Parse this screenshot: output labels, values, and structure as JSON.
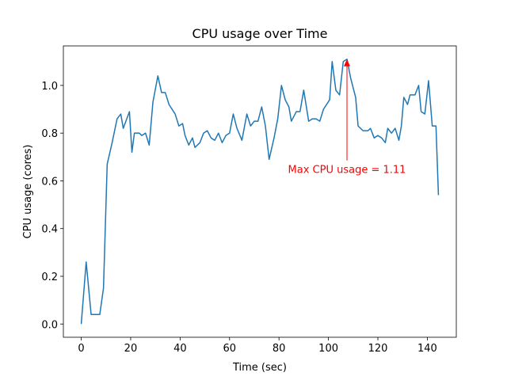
{
  "chart_data": {
    "type": "line",
    "title": "CPU usage over Time",
    "x_label": "Time (sec)",
    "y_label": "CPU usage (cores)",
    "annotation": "Max CPU usage = 1.11",
    "annotation_color": "#ff0000",
    "x": [
      0,
      2,
      4,
      6,
      7.5,
      9,
      10.5,
      12.5,
      14.5,
      16,
      17,
      19.5,
      20.5,
      21.5,
      23.5,
      24.5,
      26,
      27.5,
      29,
      31,
      32.5,
      34,
      35.5,
      38,
      39.5,
      41,
      42,
      43.5,
      45,
      46,
      48,
      49.5,
      51,
      52.5,
      54,
      55.5,
      57,
      58.5,
      60,
      61.5,
      63,
      65,
      67,
      68.5,
      70,
      71.5,
      73,
      74.5,
      76,
      78,
      79.5,
      81,
      82.5,
      84,
      85,
      87,
      88.5,
      90,
      92,
      93.5,
      95,
      96.5,
      98,
      100.5,
      101.5,
      103,
      104.5,
      106,
      107.5,
      109,
      111,
      112,
      114,
      116,
      117,
      118.5,
      120,
      121.5,
      123,
      124,
      125.5,
      127,
      128.5,
      129.5,
      130.5,
      132,
      133,
      135,
      136.5,
      137.5,
      139,
      140.5,
      142,
      143.5,
      144.5
    ],
    "series": [
      {
        "name": "CPU usage",
        "color": "#1f77b4",
        "values": [
          0.0,
          0.26,
          0.04,
          0.04,
          0.04,
          0.15,
          0.67,
          0.76,
          0.86,
          0.88,
          0.82,
          0.89,
          0.72,
          0.8,
          0.8,
          0.79,
          0.8,
          0.75,
          0.93,
          1.04,
          0.97,
          0.97,
          0.92,
          0.88,
          0.83,
          0.84,
          0.79,
          0.75,
          0.78,
          0.74,
          0.76,
          0.8,
          0.81,
          0.78,
          0.77,
          0.8,
          0.76,
          0.79,
          0.8,
          0.88,
          0.82,
          0.77,
          0.88,
          0.83,
          0.85,
          0.85,
          0.91,
          0.83,
          0.69,
          0.78,
          0.86,
          1.0,
          0.94,
          0.91,
          0.85,
          0.89,
          0.89,
          0.98,
          0.85,
          0.86,
          0.86,
          0.85,
          0.9,
          0.94,
          1.1,
          0.98,
          0.96,
          1.1,
          1.11,
          1.03,
          0.95,
          0.83,
          0.81,
          0.81,
          0.82,
          0.78,
          0.79,
          0.78,
          0.76,
          0.82,
          0.8,
          0.82,
          0.77,
          0.83,
          0.95,
          0.92,
          0.96,
          0.96,
          1.0,
          0.89,
          0.88,
          1.02,
          0.83,
          0.83,
          0.54
        ]
      }
    ],
    "xlim": [
      -7.225,
      151.725
    ],
    "ylim": [
      -0.0555,
      1.1655
    ],
    "xticks": [
      0,
      20,
      40,
      60,
      80,
      100,
      120,
      140
    ],
    "yticks": [
      {
        "value": 0,
        "label": "0.0"
      },
      0.2,
      0.4,
      0.6,
      0.8,
      {
        "value": 1,
        "label": "1.0"
      }
    ],
    "grid": false
  }
}
